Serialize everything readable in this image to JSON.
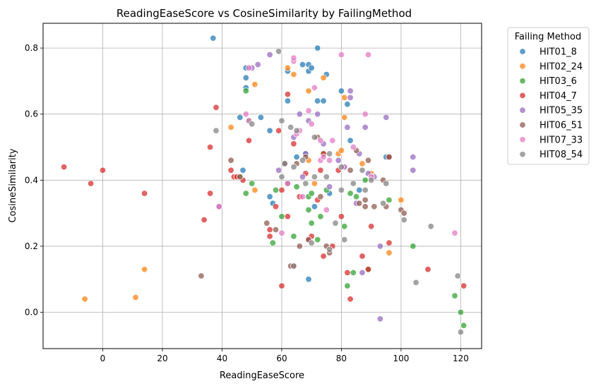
{
  "chart_data": {
    "type": "scatter",
    "title": "ReadingEaseScore vs CosineSimilarity by FailingMethod",
    "xlabel": "ReadingEaseScore",
    "ylabel": "CosineSimilarity",
    "xlim": [
      -20,
      127
    ],
    "ylim": [
      -0.11,
      0.875
    ],
    "xticks": [
      0,
      20,
      40,
      60,
      80,
      100,
      120
    ],
    "yticks": [
      0.0,
      0.2,
      0.4,
      0.6,
      0.8
    ],
    "grid": true,
    "legend": {
      "title": "Failing Method",
      "placement": "outside-right"
    },
    "series": [
      {
        "name": "HIT01_8",
        "color": "#1f77b4",
        "points": [
          [
            37,
            0.83
          ],
          [
            48,
            0.74
          ],
          [
            48,
            0.71
          ],
          [
            48,
            0.68
          ],
          [
            53,
            0.59
          ],
          [
            46,
            0.59
          ],
          [
            56,
            0.55
          ],
          [
            47,
            0.43
          ],
          [
            56,
            0.35
          ],
          [
            57,
            0.33
          ],
          [
            62,
            0.73
          ],
          [
            62,
            0.64
          ],
          [
            65,
            0.47
          ],
          [
            67,
            0.75
          ],
          [
            69,
            0.75
          ],
          [
            69,
            0.73
          ],
          [
            70,
            0.74
          ],
          [
            72,
            0.8
          ],
          [
            72,
            0.64
          ],
          [
            74,
            0.64
          ],
          [
            75,
            0.72
          ],
          [
            68,
            0.48
          ],
          [
            71,
            0.32
          ],
          [
            76,
            0.36
          ],
          [
            80,
            0.67
          ],
          [
            81,
            0.44
          ],
          [
            82,
            0.63
          ],
          [
            83,
            0.52
          ],
          [
            86,
            0.37
          ],
          [
            95,
            0.47
          ],
          [
            69,
            0.1
          ]
        ]
      },
      {
        "name": "HIT02_24",
        "color": "#ff7f0e",
        "points": [
          [
            -6,
            0.04
          ],
          [
            14,
            0.13
          ],
          [
            11,
            0.045
          ],
          [
            43,
            0.56
          ],
          [
            51,
            0.69
          ],
          [
            51,
            0.37
          ],
          [
            62,
            0.74
          ],
          [
            64,
            0.72
          ],
          [
            69,
            0.67
          ],
          [
            69,
            0.46
          ],
          [
            71,
            0.39
          ],
          [
            74,
            0.71
          ],
          [
            79,
            0.48
          ],
          [
            80,
            0.49
          ],
          [
            81,
            0.59
          ],
          [
            81,
            0.65
          ],
          [
            87,
            0.45
          ],
          [
            90,
            0.42
          ],
          [
            100,
            0.34
          ],
          [
            96,
            0.18
          ]
        ]
      },
      {
        "name": "HIT03_6",
        "color": "#2ca02c",
        "points": [
          [
            48,
            0.67
          ],
          [
            48,
            0.36
          ],
          [
            49,
            0.58
          ],
          [
            50,
            0.39
          ],
          [
            46,
            0.41
          ],
          [
            57,
            0.21
          ],
          [
            58,
            0.37
          ],
          [
            60,
            0.29
          ],
          [
            64,
            0.23
          ],
          [
            65,
            0.38
          ],
          [
            69,
            0.35
          ],
          [
            69,
            0.31
          ],
          [
            70,
            0.36
          ],
          [
            70,
            0.27
          ],
          [
            73,
            0.29
          ],
          [
            74,
            0.48
          ],
          [
            75,
            0.37
          ],
          [
            81,
            0.26
          ],
          [
            82,
            0.08
          ],
          [
            83,
            0.36
          ],
          [
            84,
            0.12
          ],
          [
            85,
            0.35
          ],
          [
            88,
            0.4
          ],
          [
            89,
            0.13
          ],
          [
            96,
            0.34
          ],
          [
            104,
            0.2
          ],
          [
            118,
            0.05
          ],
          [
            120,
            0.0
          ],
          [
            121,
            -0.04
          ],
          [
            72,
            0.22
          ]
        ]
      },
      {
        "name": "HIT04_7",
        "color": "#d62728",
        "points": [
          [
            -13,
            0.44
          ],
          [
            -4,
            0.39
          ],
          [
            0,
            0.43
          ],
          [
            14,
            0.36
          ],
          [
            34,
            0.28
          ],
          [
            36,
            0.5
          ],
          [
            36,
            0.36
          ],
          [
            38,
            0.62
          ],
          [
            43,
            0.43
          ],
          [
            44,
            0.41
          ],
          [
            45,
            0.41
          ],
          [
            47,
            0.4
          ],
          [
            49,
            0.52
          ],
          [
            56,
            0.25
          ],
          [
            56,
            0.23
          ],
          [
            58,
            0.32
          ],
          [
            59,
            0.55
          ],
          [
            60,
            0.37
          ],
          [
            60,
            0.08
          ],
          [
            62,
            0.29
          ],
          [
            62,
            0.66
          ],
          [
            64,
            0.14
          ],
          [
            64,
            0.51
          ],
          [
            66,
            0.35
          ],
          [
            68,
            0.42
          ],
          [
            69,
            0.22
          ],
          [
            70,
            0.23
          ],
          [
            72,
            0.34
          ],
          [
            73,
            0.43
          ],
          [
            74,
            0.48
          ],
          [
            74,
            0.17
          ],
          [
            77,
            0.2
          ],
          [
            79,
            0.43
          ],
          [
            80,
            0.29
          ],
          [
            82,
            0.12
          ],
          [
            83,
            0.04
          ],
          [
            87,
            0.17
          ],
          [
            89,
            0.13
          ],
          [
            90,
            0.26
          ],
          [
            96,
            0.21
          ],
          [
            96,
            0.47
          ],
          [
            109,
            0.13
          ],
          [
            121,
            0.08
          ]
        ]
      },
      {
        "name": "HIT05_35",
        "color": "#9467bd",
        "points": [
          [
            39,
            0.32
          ],
          [
            50,
            0.74
          ],
          [
            52,
            0.75
          ],
          [
            56,
            0.78
          ],
          [
            59,
            0.43
          ],
          [
            64,
            0.53
          ],
          [
            66,
            0.6
          ],
          [
            67,
            0.41
          ],
          [
            68,
            0.48
          ],
          [
            69,
            0.58
          ],
          [
            72,
            0.6
          ],
          [
            74,
            0.51
          ],
          [
            76,
            0.38
          ],
          [
            79,
            0.46
          ],
          [
            82,
            0.56
          ],
          [
            83,
            0.67
          ],
          [
            83,
            0.65
          ],
          [
            86,
            0.48
          ],
          [
            87,
            0.12
          ],
          [
            88,
            0.56
          ],
          [
            89,
            0.42
          ],
          [
            91,
            0.41
          ],
          [
            93,
            -0.02
          ],
          [
            93,
            0.2
          ],
          [
            95,
            0.59
          ],
          [
            104,
            0.47
          ],
          [
            104,
            0.43
          ],
          [
            85,
            0.33
          ]
        ]
      },
      {
        "name": "HIT06_51",
        "color": "#8c564b",
        "points": [
          [
            33,
            0.11
          ],
          [
            43,
            0.46
          ],
          [
            46,
            0.41
          ],
          [
            55,
            0.27
          ],
          [
            58,
            0.25
          ],
          [
            61,
            0.45
          ],
          [
            63,
            0.14
          ],
          [
            65,
            0.45
          ],
          [
            66,
            0.2
          ],
          [
            68,
            0.47
          ],
          [
            69,
            0.22
          ],
          [
            72,
            0.53
          ],
          [
            73,
            0.35
          ],
          [
            75,
            0.2
          ],
          [
            76,
            0.18
          ],
          [
            83,
            0.43
          ],
          [
            85,
            0.49
          ],
          [
            86,
            0.33
          ],
          [
            88,
            0.32
          ],
          [
            89,
            0.46
          ],
          [
            91,
            0.32
          ],
          [
            94,
            0.4
          ],
          [
            95,
            0.32
          ],
          [
            100,
            0.31
          ],
          [
            101,
            0.3
          ],
          [
            62,
            0.39
          ],
          [
            88,
            0.34
          ],
          [
            96,
            0.47
          ]
        ]
      },
      {
        "name": "HIT07_33",
        "color": "#e377c2",
        "points": [
          [
            39,
            0.32
          ],
          [
            48,
            0.6
          ],
          [
            49,
            0.58
          ],
          [
            49,
            0.74
          ],
          [
            60,
            0.24
          ],
          [
            62,
            0.39
          ],
          [
            64,
            0.76
          ],
          [
            65,
            0.54
          ],
          [
            66,
            0.55
          ],
          [
            67,
            0.35
          ],
          [
            69,
            0.61
          ],
          [
            70,
            0.57
          ],
          [
            71,
            0.68
          ],
          [
            73,
            0.46
          ],
          [
            73,
            0.52
          ],
          [
            74,
            0.47
          ],
          [
            76,
            0.46
          ],
          [
            77,
            0.52
          ],
          [
            80,
            0.78
          ],
          [
            81,
            0.44
          ],
          [
            84,
            0.5
          ],
          [
            88,
            0.6
          ],
          [
            89,
            0.78
          ],
          [
            90,
            0.41
          ],
          [
            118,
            0.24
          ],
          [
            64,
            0.77
          ],
          [
            75,
            0.31
          ]
        ]
      },
      {
        "name": "HIT08_54",
        "color": "#7f7f7f",
        "points": [
          [
            38,
            0.55
          ],
          [
            50,
            0.57
          ],
          [
            59,
            0.79
          ],
          [
            60,
            0.58
          ],
          [
            60,
            0.41
          ],
          [
            61,
            0.45
          ],
          [
            63,
            0.56
          ],
          [
            64,
            0.44
          ],
          [
            65,
            0.55
          ],
          [
            67,
            0.46
          ],
          [
            68,
            0.39
          ],
          [
            71,
            0.41
          ],
          [
            71,
            0.53
          ],
          [
            75,
            0.41
          ],
          [
            76,
            0.48
          ],
          [
            76,
            0.19
          ],
          [
            78,
            0.27
          ],
          [
            80,
            0.37
          ],
          [
            80,
            0.44
          ],
          [
            81,
            0.22
          ],
          [
            84,
            0.39
          ],
          [
            87,
            0.43
          ],
          [
            88,
            0.37
          ],
          [
            90,
            0.4
          ],
          [
            94,
            0.33
          ],
          [
            95,
            0.39
          ],
          [
            101,
            0.28
          ],
          [
            105,
            0.09
          ],
          [
            110,
            0.26
          ],
          [
            119,
            0.11
          ],
          [
            120,
            -0.06
          ],
          [
            64,
            0.14
          ],
          [
            70,
            0.21
          ]
        ]
      }
    ]
  }
}
